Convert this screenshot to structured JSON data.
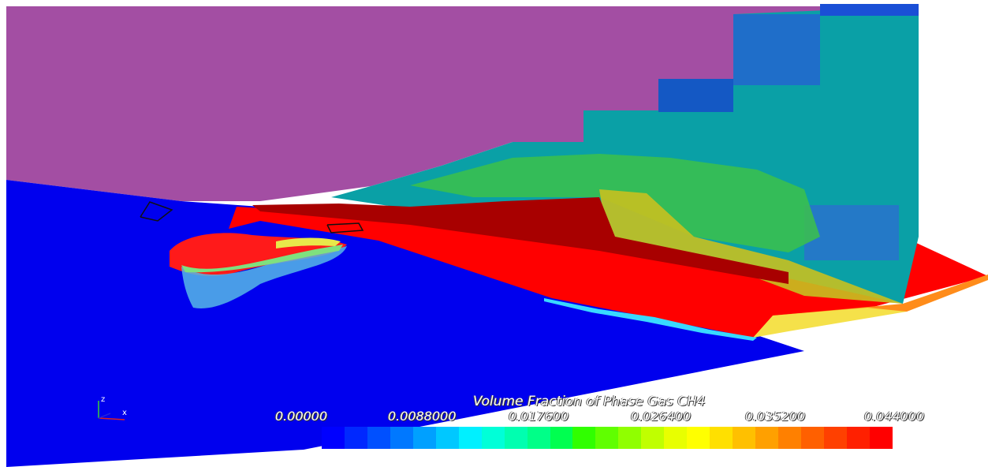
{
  "legend": {
    "title": "Volume Fraction of Phase Gas CH4",
    "ticks": [
      "0.00000",
      "0.0088000",
      "0.017600",
      "0.026400",
      "0.035200",
      "0.044000"
    ],
    "range": [
      0.0,
      0.044
    ],
    "colormap": [
      "#0000ff",
      "#0028ff",
      "#0050ff",
      "#0078ff",
      "#00a0ff",
      "#00c8ff",
      "#00f0ff",
      "#00ffd8",
      "#00ffb0",
      "#00ff88",
      "#00ff50",
      "#30ff00",
      "#60ff00",
      "#90ff00",
      "#c0ff00",
      "#e8ff00",
      "#ffff00",
      "#ffe000",
      "#ffc000",
      "#ffa000",
      "#ff8000",
      "#ff6000",
      "#ff4000",
      "#ff2000",
      "#ff0000"
    ]
  },
  "axes_triad": {
    "labels": [
      "z",
      "x"
    ]
  },
  "colors": {
    "background": "#ffffff",
    "upper_wall": "#a34ea3",
    "floor_low": "#0000ff",
    "floor_high": "#ff0000"
  }
}
